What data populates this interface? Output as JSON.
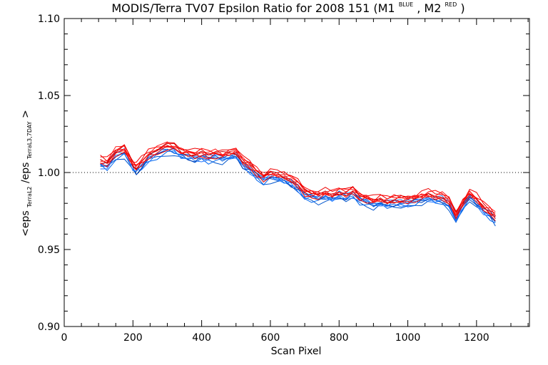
{
  "chart_data": {
    "type": "line",
    "title": {
      "prefix": "MODIS/Terra TV07 Epsilon Ratio for 2008 151 (M1",
      "sup1": "BLUE",
      "mid": ", M2",
      "sup2": "RED",
      "suffix": ")"
    },
    "xlabel": "Scan Pixel",
    "ylabel": {
      "open": "<eps",
      "sub1": "TerraL2",
      "mid": "/eps",
      "sub2": "TerraL3,7DAY",
      "close": ">"
    },
    "xlim": [
      0,
      1354
    ],
    "ylim": [
      0.9,
      1.1
    ],
    "x_ticks": [
      0,
      200,
      400,
      600,
      800,
      1000,
      1200
    ],
    "x_tick_labels": [
      "0",
      "200",
      "400",
      "600",
      "800",
      "1000",
      "1200"
    ],
    "y_ticks": [
      0.9,
      0.95,
      1.0,
      1.05,
      1.1
    ],
    "y_tick_labels": [
      "0.90",
      "0.95",
      "1.00",
      "1.05",
      "1.10"
    ],
    "reference_line": {
      "y": 1.0,
      "style": "dotted"
    },
    "x": [
      105,
      125,
      150,
      175,
      190,
      200,
      210,
      225,
      245,
      270,
      300,
      320,
      340,
      360,
      380,
      400,
      420,
      440,
      460,
      480,
      500,
      520,
      540,
      560,
      580,
      600,
      620,
      640,
      660,
      680,
      700,
      720,
      740,
      760,
      780,
      800,
      820,
      840,
      860,
      880,
      900,
      920,
      940,
      960,
      980,
      1000,
      1020,
      1040,
      1060,
      1080,
      1100,
      1120,
      1140,
      1160,
      1180,
      1200,
      1220,
      1240,
      1255
    ],
    "center": [
      1.006,
      1.005,
      1.012,
      1.014,
      1.008,
      1.004,
      1.002,
      1.005,
      1.01,
      1.013,
      1.016,
      1.015,
      1.012,
      1.011,
      1.01,
      1.011,
      1.01,
      1.011,
      1.01,
      1.011,
      1.012,
      1.006,
      1.003,
      0.999,
      0.996,
      0.998,
      0.997,
      0.996,
      0.994,
      0.991,
      0.986,
      0.985,
      0.984,
      0.985,
      0.984,
      0.986,
      0.985,
      0.987,
      0.983,
      0.982,
      0.98,
      0.981,
      0.98,
      0.981,
      0.981,
      0.981,
      0.982,
      0.983,
      0.984,
      0.983,
      0.983,
      0.98,
      0.971,
      0.979,
      0.985,
      0.981,
      0.976,
      0.973,
      0.97
    ],
    "series": [
      {
        "color": "#0055cc",
        "offset": -0.003
      },
      {
        "color": "#0066ee",
        "offset": -0.0022
      },
      {
        "color": "#2277ff",
        "offset": -0.0016
      },
      {
        "color": "#0044bb",
        "offset": -0.0011
      },
      {
        "color": "#3388ff",
        "offset": -0.0006
      },
      {
        "color": "#1166dd",
        "offset": -0.0002
      },
      {
        "color": "#dd0000",
        "offset": 0.0002
      },
      {
        "color": "#ff0000",
        "offset": 0.0007
      },
      {
        "color": "#ee1111",
        "offset": 0.0012
      },
      {
        "color": "#cc0000",
        "offset": 0.0018
      },
      {
        "color": "#ff2222",
        "offset": 0.0024
      },
      {
        "color": "#ff0000",
        "offset": 0.003
      },
      {
        "color": "#ee0000",
        "offset": 0.0036
      }
    ],
    "grid": false,
    "legend": "none"
  }
}
